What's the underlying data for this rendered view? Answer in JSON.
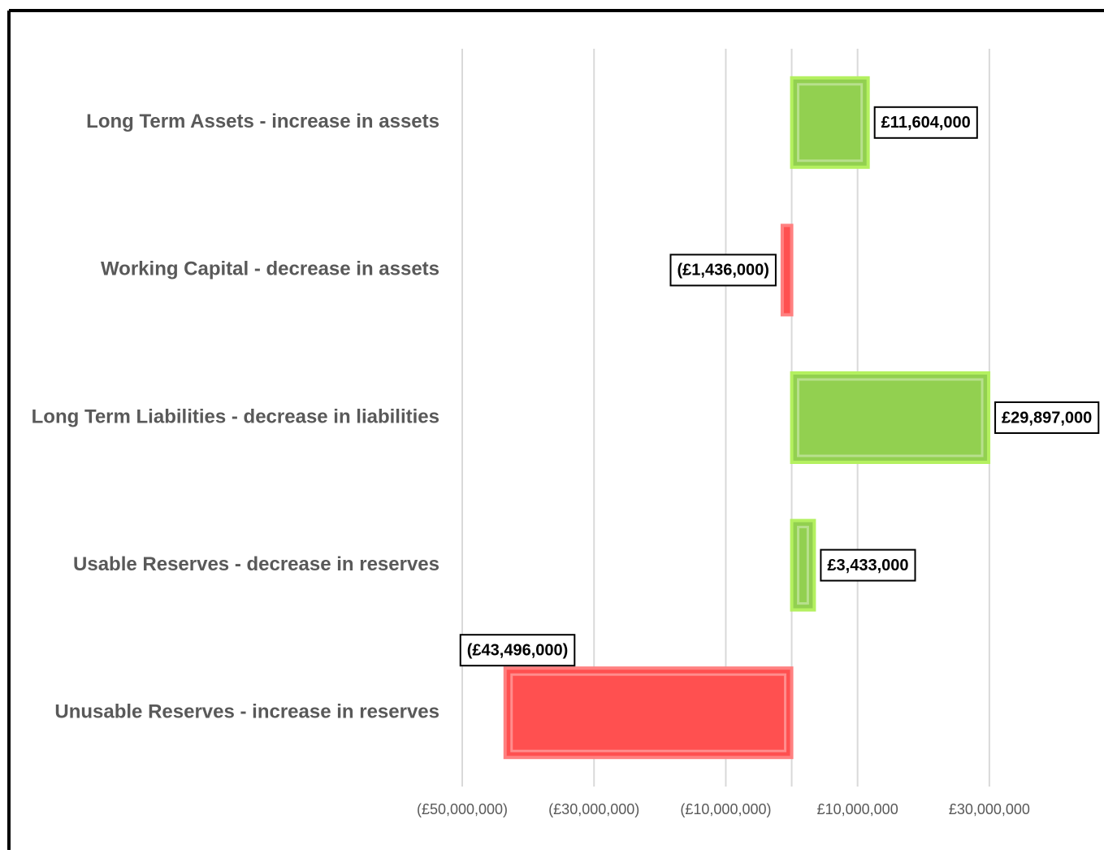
{
  "chart_data": {
    "type": "bar",
    "orientation": "horizontal",
    "categories": [
      "Long Term Assets - increase in assets",
      "Working Capital - decrease in assets",
      "Long Term Liabilities - decrease in liabilities",
      "Usable Reserves - decrease in reserves",
      "Unusable Reserves - increase in reserves"
    ],
    "values": [
      11604000,
      -1436000,
      29897000,
      3433000,
      -43496000
    ],
    "value_labels": [
      "£11,604,000",
      "(£1,436,000)",
      "£29,897,000",
      "£3,433,000",
      "(£43,496,000)"
    ],
    "colors": [
      "#92d050",
      "#ff5050",
      "#92d050",
      "#92d050",
      "#ff5050"
    ],
    "xlim": [
      -50000000,
      40000000
    ],
    "xticks": [
      {
        "value": -50000000,
        "label": "(£50,000,000)"
      },
      {
        "value": -30000000,
        "label": "(£30,000,000)"
      },
      {
        "value": -10000000,
        "label": "(£10,000,000)"
      },
      {
        "value": 10000000,
        "label": "£10,000,000"
      },
      {
        "value": 30000000,
        "label": "£30,000,000"
      }
    ],
    "grid": true
  }
}
